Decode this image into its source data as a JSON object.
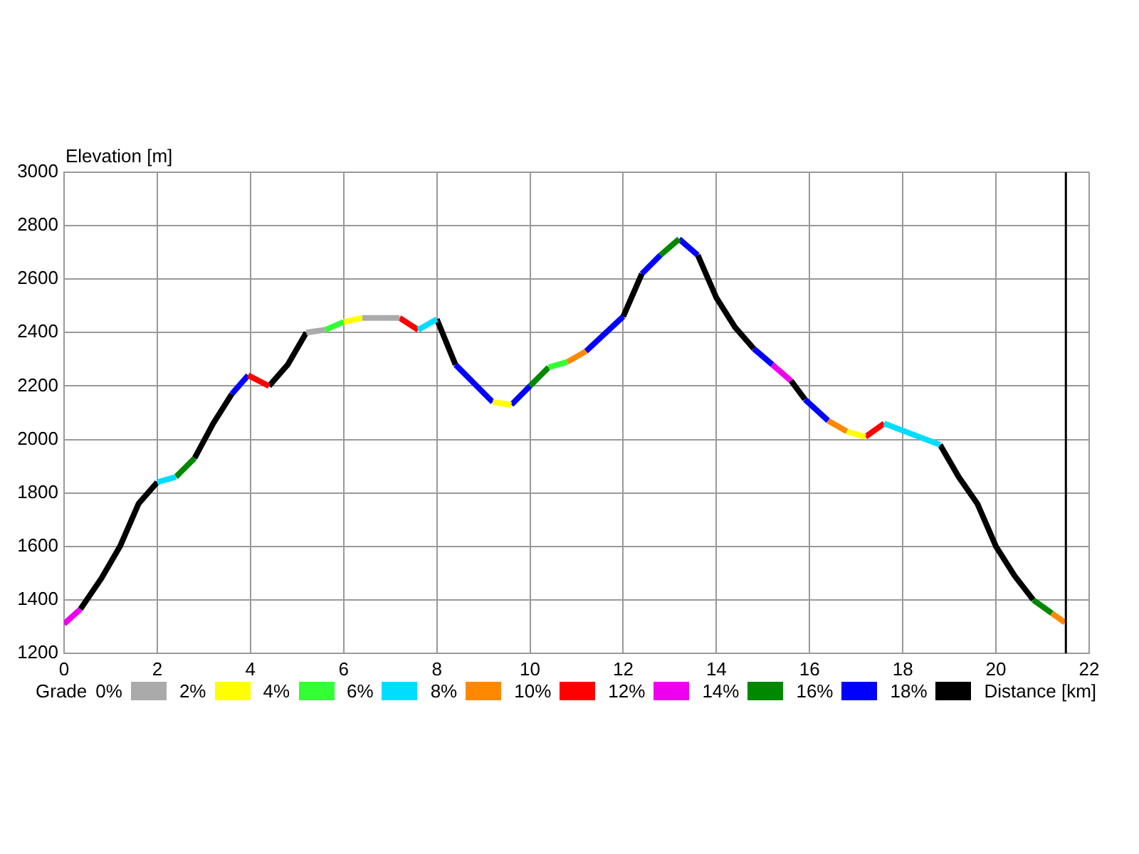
{
  "chart_data": {
    "type": "line",
    "xlabel": "Distance [km]",
    "ylabel": "Elevation [m]",
    "legend_title": "Grade",
    "xlim": [
      0,
      22
    ],
    "xticks": [
      0,
      2,
      4,
      6,
      8,
      10,
      12,
      14,
      16,
      18,
      20,
      22
    ],
    "ylim": [
      1200,
      3000
    ],
    "yticks": [
      1200,
      1400,
      1600,
      1800,
      2000,
      2200,
      2400,
      2600,
      2800,
      3000
    ],
    "grid": true,
    "legend": "bottom",
    "marker": "none",
    "line_style": "solid",
    "ref_lines": [
      {
        "axis": "x",
        "value": 21.5,
        "color": "#000000"
      }
    ],
    "series": [
      {
        "name": "0%",
        "color": "#aaaaaa",
        "x": [
          5.2,
          5.6,
          6.0,
          6.4,
          7.2
        ],
        "values": [
          2400,
          2410,
          null,
          2455,
          2455
        ]
      },
      {
        "name": "2%",
        "color": "#ffff00",
        "x": [
          6.0,
          6.4,
          7.8,
          9.2,
          9.6,
          13.2,
          16.8,
          17.2
        ],
        "values": [
          2440,
          2455,
          null,
          2140,
          2130,
          null,
          2030,
          2010
        ]
      },
      {
        "name": "4%",
        "color": "#33ff33",
        "x": [
          5.6,
          6.0,
          8.2,
          10.4,
          10.8
        ],
        "values": [
          2410,
          2440,
          null,
          2270,
          2290
        ]
      },
      {
        "name": "6%",
        "color": "#00ddff",
        "x": [
          2.0,
          2.4,
          5.0,
          7.6,
          8.0,
          12.8,
          17.6,
          18.8
        ],
        "values": [
          1840,
          1860,
          null,
          2410,
          2450,
          null,
          2060,
          1980
        ]
      },
      {
        "name": "8%",
        "color": "#ff8800",
        "x": [
          10.8,
          11.2,
          13.8,
          16.4,
          16.8,
          19.0,
          21.2,
          21.48
        ],
        "values": [
          2290,
          2330,
          null,
          2070,
          2030,
          null,
          1350,
          1315
        ]
      },
      {
        "name": "10%",
        "color": "#ff0000",
        "x": [
          3.95,
          4.4,
          5.8,
          7.2,
          7.6,
          12.4,
          17.2,
          17.6
        ],
        "values": [
          2240,
          2200,
          null,
          2455,
          2410,
          null,
          2010,
          2060
        ]
      },
      {
        "name": "12%",
        "color": "#ee00ee",
        "x": [
          0,
          0.35,
          7.8,
          15.2,
          15.6
        ],
        "values": [
          1310,
          1365,
          null,
          2280,
          2220
        ]
      },
      {
        "name": "14%",
        "color": "#008800",
        "x": [
          2.4,
          2.8,
          6.4,
          10.0,
          10.4,
          11.6,
          12.8,
          13.2,
          17.0,
          20.8,
          21.2
        ],
        "values": [
          1860,
          1930,
          null,
          2200,
          2270,
          null,
          2690,
          2750,
          null,
          1400,
          1350
        ]
      },
      {
        "name": "16%",
        "color": "#0000ff",
        "x": [
          3.6,
          3.95,
          6.2,
          8.4,
          9.2,
          9.4,
          9.6,
          10.0,
          10.6,
          11.2,
          12.0,
          12.2,
          12.4,
          12.8,
          13.0,
          13.2,
          13.6,
          14.2,
          14.8,
          15.2,
          15.4,
          15.9,
          16.4
        ],
        "values": [
          2170,
          2240,
          null,
          2280,
          2140,
          null,
          2130,
          2200,
          null,
          2330,
          2460,
          null,
          2620,
          2690,
          null,
          2750,
          2690,
          null,
          2340,
          2280,
          null,
          2150,
          2070
        ]
      },
      {
        "name": "18%",
        "color": "#000000",
        "x": [
          0.35,
          0.8,
          1.2,
          1.6,
          2.0,
          2.4,
          2.8,
          3.2,
          3.6,
          3.8,
          4.4,
          4.8,
          5.2,
          6.6,
          8.0,
          8.4,
          10.2,
          12.0,
          12.4,
          13.0,
          13.6,
          14.0,
          14.4,
          14.8,
          15.2,
          15.6,
          15.9,
          17.4,
          18.8,
          19.2,
          19.6,
          20.0,
          20.4,
          20.8
        ],
        "values": [
          1365,
          1480,
          1600,
          1760,
          1840,
          null,
          1930,
          2060,
          2170,
          null,
          2200,
          2280,
          2400,
          null,
          2450,
          2280,
          null,
          2460,
          2620,
          null,
          2690,
          2530,
          2420,
          2340,
          null,
          2220,
          2150,
          null,
          1980,
          1860,
          1760,
          1600,
          1490,
          1400
        ]
      }
    ]
  }
}
